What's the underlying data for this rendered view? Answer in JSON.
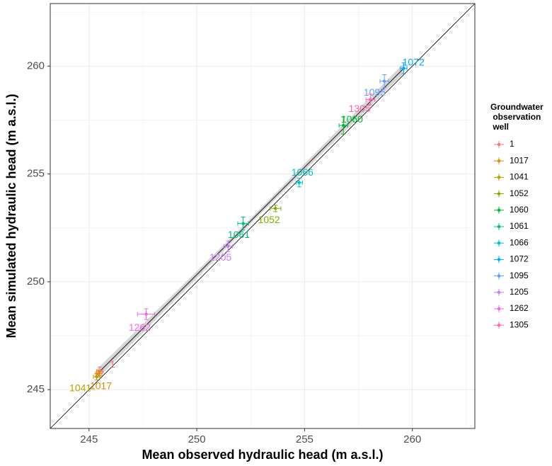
{
  "chart_data": {
    "type": "scatter",
    "xlabel": "Mean observed hydraulic head (m a.s.l.)",
    "ylabel": "Mean simulated hydraulic head (m a.s.l.)",
    "xlim": [
      243.2,
      262.9
    ],
    "ylim": [
      243.2,
      262.9
    ],
    "x_ticks": [
      245,
      250,
      255,
      260
    ],
    "y_ticks": [
      245,
      250,
      255,
      260
    ],
    "grid": true,
    "reference_line": "y = x",
    "legend": {
      "title_lines": [
        "Groundwater",
        " observation",
        " well"
      ],
      "placement": "right"
    },
    "series": [
      {
        "name": "1",
        "label": "1",
        "color": "#F8766D",
        "x": 245.5,
        "y": 245.85,
        "xerr": 0.15,
        "yerr": 0.2,
        "label_dx": 0.6,
        "label_dy": 0.3
      },
      {
        "name": "1017",
        "label": "1017",
        "color": "#DE8C00",
        "x": 245.45,
        "y": 245.75,
        "xerr": 0.15,
        "yerr": 0.15,
        "label_dx": 0.1,
        "label_dy": -0.6
      },
      {
        "name": "1041",
        "label": "1041",
        "color": "#B79F00",
        "x": 245.35,
        "y": 245.6,
        "xerr": 0.15,
        "yerr": 0.15,
        "label_dx": -0.75,
        "label_dy": -0.55
      },
      {
        "name": "1052",
        "label": "1052",
        "color": "#7CAE00",
        "x": 253.65,
        "y": 253.4,
        "xerr": 0.25,
        "yerr": 0.15,
        "label_dx": -0.3,
        "label_dy": -0.55
      },
      {
        "name": "1060",
        "label": "1060",
        "color": "#00BA38",
        "x": 256.8,
        "y": 257.25,
        "xerr": 0.2,
        "yerr": 0.4,
        "label_dx": 0.4,
        "label_dy": 0.25
      },
      {
        "name": "1061",
        "label": "1061",
        "color": "#00BF7D",
        "x": 252.15,
        "y": 252.7,
        "xerr": 0.25,
        "yerr": 0.3,
        "label_dx": -0.2,
        "label_dy": -0.55
      },
      {
        "name": "1066",
        "label": "1066",
        "color": "#00BFC4",
        "x": 254.75,
        "y": 254.6,
        "xerr": 0.15,
        "yerr": 0.2,
        "label_dx": 0.15,
        "label_dy": 0.45
      },
      {
        "name": "1072",
        "label": "1072",
        "color": "#00A9FF",
        "x": 259.6,
        "y": 259.9,
        "xerr": 0.15,
        "yerr": 0.25,
        "label_dx": 0.45,
        "label_dy": 0.25
      },
      {
        "name": "1095",
        "label": "1095",
        "color": "#619CFF",
        "x": 258.7,
        "y": 259.3,
        "xerr": 0.2,
        "yerr": 0.3,
        "label_dx": -0.45,
        "label_dy": -0.55
      },
      {
        "name": "1205",
        "label": "1205",
        "color": "#C77CFF",
        "x": 251.45,
        "y": 251.65,
        "xerr": 0.2,
        "yerr": 0.25,
        "label_dx": -0.35,
        "label_dy": -0.55
      },
      {
        "name": "1262",
        "label": "1262",
        "color": "#F564E3",
        "x": 247.65,
        "y": 248.5,
        "xerr": 0.4,
        "yerr": 0.25,
        "label_dx": -0.3,
        "label_dy": -0.65
      },
      {
        "name": "1305",
        "label": "1305",
        "color": "#FF64B0",
        "x": 258.05,
        "y": 258.45,
        "xerr": 0.2,
        "yerr": 0.25,
        "label_dx": -0.5,
        "label_dy": -0.45
      }
    ]
  }
}
